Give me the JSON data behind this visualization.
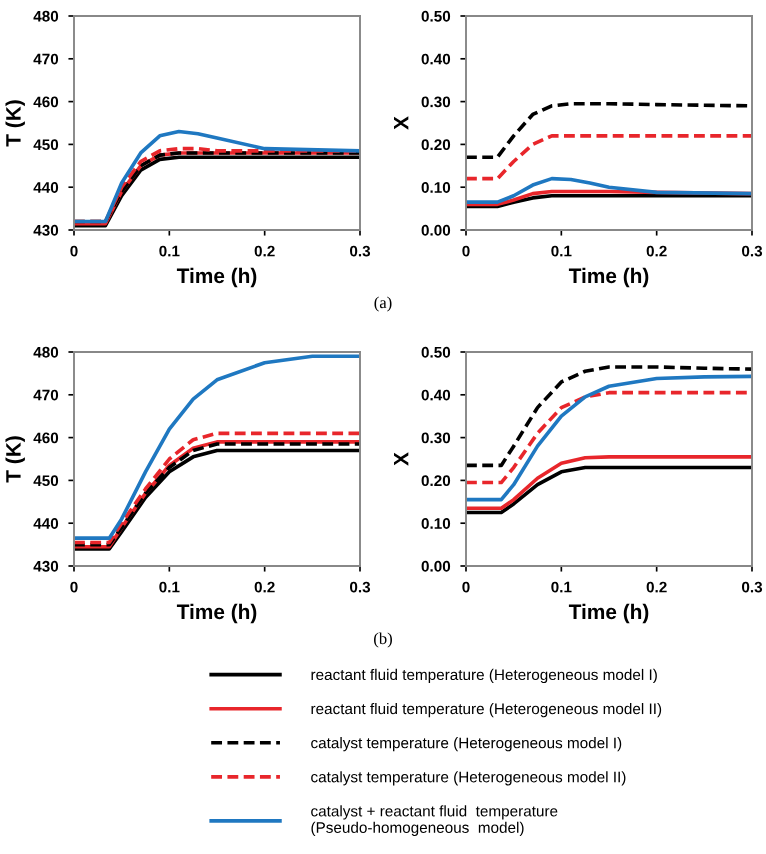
{
  "chart_data": [
    {
      "type": "line",
      "ylabel": "T (K)",
      "xlabel": "Time (h)",
      "x": [
        0,
        0.033,
        0.05,
        0.07,
        0.09,
        0.11,
        0.13,
        0.15,
        0.2,
        0.3
      ],
      "xlim": [
        0,
        0.3
      ],
      "xticks": [
        0,
        0.1,
        0.2,
        0.3
      ],
      "ylim": [
        430,
        480
      ],
      "yticks": [
        430,
        440,
        450,
        460,
        470,
        480
      ],
      "grid": false,
      "legend": "bottom",
      "annotations": [
        "(a)"
      ],
      "series": [
        {
          "name": "reactant fluid temperature (Heterogeneous model I)",
          "color": "#000000",
          "line_style": "solid",
          "values": [
            431,
            431,
            438,
            444,
            446.5,
            447,
            447,
            447,
            447,
            447
          ]
        },
        {
          "name": "reactant fluid temperature (Heterogeneous model II)",
          "color": "#e8262b",
          "line_style": "solid",
          "values": [
            431.5,
            431.5,
            439,
            445,
            447.5,
            448,
            448,
            448,
            448,
            448
          ]
        },
        {
          "name": "catalyst temperature (Heterogeneous model I)",
          "color": "#000000",
          "line_style": "dashed",
          "values": [
            432,
            432,
            439,
            445,
            447.5,
            448,
            448,
            448,
            448,
            448
          ]
        },
        {
          "name": "catalyst temperature (Heterogeneous model II)",
          "color": "#e8262b",
          "line_style": "dashed",
          "values": [
            432,
            432,
            440,
            446,
            448.5,
            449,
            449,
            448.5,
            448.5,
            448.5
          ]
        },
        {
          "name": "catalyst + reactant fluid  temperature\n(Pseudo-homogeneous  model)",
          "color": "#1f78c1",
          "line_style": "solid",
          "values": [
            432,
            432,
            441,
            448,
            452,
            453,
            452.5,
            451.5,
            449,
            448.5
          ]
        }
      ]
    },
    {
      "type": "line",
      "ylabel": "X",
      "xlabel": "Time (h)",
      "x": [
        0,
        0.033,
        0.05,
        0.07,
        0.09,
        0.11,
        0.13,
        0.15,
        0.2,
        0.3
      ],
      "xlim": [
        0,
        0.3
      ],
      "xticks": [
        0,
        0.1,
        0.2,
        0.3
      ],
      "ylim": [
        0,
        0.5
      ],
      "yticks": [
        {
          "value": 0,
          "label": "0.00"
        },
        {
          "value": 0.1,
          "label": "0.10"
        },
        {
          "value": 0.2,
          "label": "0.20"
        },
        {
          "value": 0.3,
          "label": "0.30"
        },
        {
          "value": 0.4,
          "label": "0.40"
        },
        {
          "value": 0.5,
          "label": "0.50"
        }
      ],
      "grid": false,
      "series": [
        {
          "color": "#000000",
          "line_style": "solid",
          "values": [
            0.055,
            0.055,
            0.065,
            0.075,
            0.08,
            0.08,
            0.08,
            0.08,
            0.08,
            0.08
          ]
        },
        {
          "color": "#e8262b",
          "line_style": "solid",
          "values": [
            0.06,
            0.06,
            0.07,
            0.085,
            0.09,
            0.09,
            0.09,
            0.09,
            0.088,
            0.085
          ]
        },
        {
          "color": "#000000",
          "line_style": "dashed",
          "values": [
            0.17,
            0.17,
            0.22,
            0.27,
            0.29,
            0.295,
            0.295,
            0.295,
            0.293,
            0.29
          ]
        },
        {
          "color": "#e8262b",
          "line_style": "dashed",
          "values": [
            0.12,
            0.12,
            0.16,
            0.2,
            0.22,
            0.22,
            0.22,
            0.22,
            0.22,
            0.22
          ]
        },
        {
          "color": "#1f78c1",
          "line_style": "solid",
          "values": [
            0.065,
            0.065,
            0.08,
            0.105,
            0.12,
            0.118,
            0.11,
            0.1,
            0.088,
            0.085
          ]
        }
      ]
    },
    {
      "type": "line",
      "ylabel": "T (K)",
      "xlabel": "Time (h)",
      "x": [
        0,
        0.037,
        0.05,
        0.075,
        0.1,
        0.125,
        0.15,
        0.2,
        0.25,
        0.3
      ],
      "xlim": [
        0,
        0.3
      ],
      "xticks": [
        0,
        0.1,
        0.2,
        0.3
      ],
      "ylim": [
        430,
        480
      ],
      "yticks": [
        430,
        440,
        450,
        460,
        470,
        480
      ],
      "grid": false,
      "annotations": [
        "(b)"
      ],
      "series": [
        {
          "color": "#000000",
          "line_style": "solid",
          "values": [
            434,
            434,
            438,
            446,
            452,
            455.5,
            457,
            457,
            457,
            457
          ]
        },
        {
          "color": "#e8262b",
          "line_style": "solid",
          "values": [
            434.5,
            434.5,
            439,
            447,
            453.5,
            457.5,
            459,
            459,
            459,
            459
          ]
        },
        {
          "color": "#000000",
          "line_style": "dashed",
          "values": [
            435,
            435,
            439,
            447,
            453,
            457,
            458.5,
            458.5,
            458.5,
            458.5
          ]
        },
        {
          "color": "#e8262b",
          "line_style": "dashed",
          "values": [
            435.5,
            435.5,
            440,
            448,
            455,
            459.5,
            461,
            461,
            461,
            461
          ]
        },
        {
          "color": "#1f78c1",
          "line_style": "solid",
          "values": [
            436.5,
            436.5,
            441,
            452,
            462,
            469,
            473.5,
            477.5,
            479,
            479
          ]
        }
      ]
    },
    {
      "type": "line",
      "ylabel": "X",
      "xlabel": "Time (h)",
      "x": [
        0,
        0.037,
        0.05,
        0.075,
        0.1,
        0.125,
        0.15,
        0.2,
        0.25,
        0.3
      ],
      "xlim": [
        0,
        0.3
      ],
      "xticks": [
        0,
        0.1,
        0.2,
        0.3
      ],
      "ylim": [
        0,
        0.5
      ],
      "yticks": [
        {
          "value": 0,
          "label": "0.00"
        },
        {
          "value": 0.1,
          "label": "0.10"
        },
        {
          "value": 0.2,
          "label": "0.20"
        },
        {
          "value": 0.3,
          "label": "0.30"
        },
        {
          "value": 0.4,
          "label": "0.40"
        },
        {
          "value": 0.5,
          "label": "0.50"
        }
      ],
      "grid": false,
      "series": [
        {
          "color": "#000000",
          "line_style": "solid",
          "values": [
            0.125,
            0.125,
            0.145,
            0.19,
            0.22,
            0.23,
            0.23,
            0.23,
            0.23,
            0.23
          ]
        },
        {
          "color": "#e8262b",
          "line_style": "solid",
          "values": [
            0.135,
            0.135,
            0.155,
            0.205,
            0.24,
            0.253,
            0.255,
            0.255,
            0.255,
            0.255
          ]
        },
        {
          "color": "#000000",
          "line_style": "dashed",
          "values": [
            0.235,
            0.235,
            0.28,
            0.37,
            0.43,
            0.455,
            0.465,
            0.465,
            0.462,
            0.46
          ]
        },
        {
          "color": "#e8262b",
          "line_style": "dashed",
          "values": [
            0.195,
            0.195,
            0.23,
            0.31,
            0.37,
            0.395,
            0.405,
            0.405,
            0.405,
            0.405
          ]
        },
        {
          "color": "#1f78c1",
          "line_style": "solid",
          "values": [
            0.155,
            0.155,
            0.19,
            0.28,
            0.35,
            0.395,
            0.42,
            0.438,
            0.442,
            0.443
          ]
        }
      ]
    }
  ]
}
